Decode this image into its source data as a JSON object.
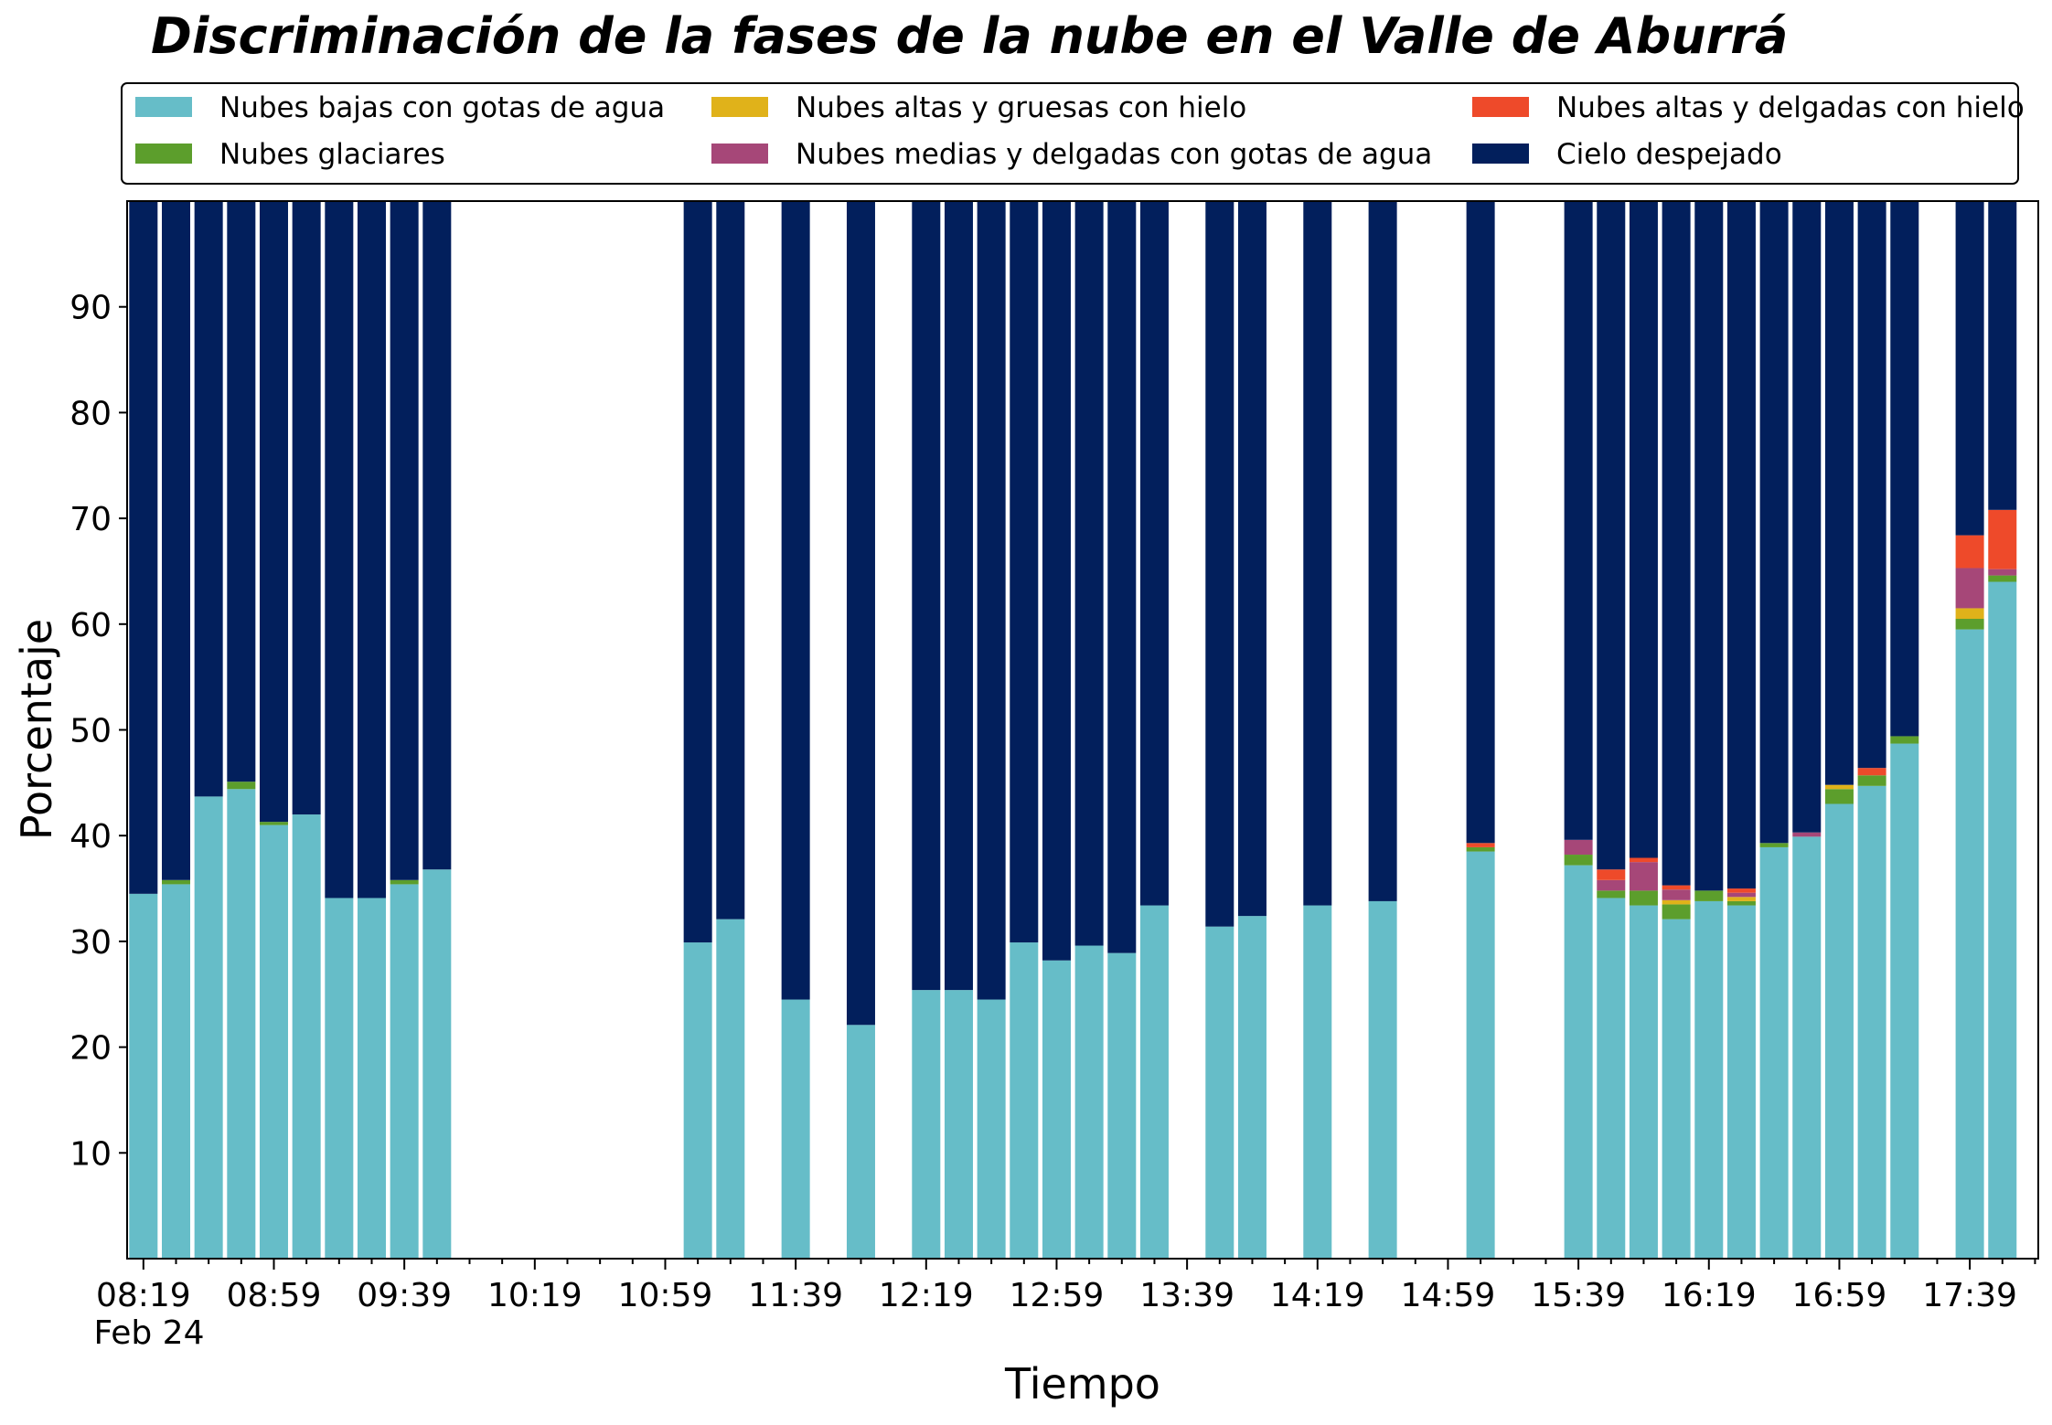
{
  "chart_data": {
    "type": "bar",
    "stacked": true,
    "title": "Discriminación de la fases de la nube en el Valle de Aburrá",
    "xlabel": "Tiempo",
    "ylabel": "Porcentaje",
    "ylim": [
      0,
      100
    ],
    "yticks": [
      10,
      20,
      30,
      40,
      50,
      60,
      70,
      80,
      90
    ],
    "xlim": [
      "08:14",
      "18:00"
    ],
    "xtick_labels": [
      "08:19",
      "08:59",
      "09:39",
      "10:19",
      "10:59",
      "11:39",
      "12:19",
      "12:59",
      "13:39",
      "14:19",
      "14:59",
      "15:39",
      "16:19",
      "16:59",
      "17:39"
    ],
    "x_date_label": "Feb 24",
    "grid": false,
    "legend_position": "top",
    "x": [
      "08:19",
      "08:29",
      "08:39",
      "08:49",
      "08:59",
      "09:09",
      "09:19",
      "09:29",
      "09:39",
      "09:49",
      "11:09",
      "11:19",
      "11:39",
      "11:59",
      "12:19",
      "12:29",
      "12:39",
      "12:49",
      "12:59",
      "13:09",
      "13:19",
      "13:29",
      "13:49",
      "13:59",
      "14:19",
      "14:39",
      "15:09",
      "15:39",
      "15:49",
      "15:59",
      "16:09",
      "16:19",
      "16:29",
      "16:39",
      "16:49",
      "16:59",
      "17:09",
      "17:19",
      "17:39",
      "17:49"
    ],
    "series": [
      {
        "name": "Nubes bajas con gotas de agua",
        "color": "#66bdc8",
        "values": [
          34.5,
          35.4,
          43.7,
          44.4,
          41.0,
          42.0,
          34.1,
          34.1,
          35.4,
          36.8,
          29.9,
          32.1,
          24.5,
          22.1,
          25.4,
          25.4,
          24.5,
          29.9,
          28.2,
          29.6,
          28.9,
          33.4,
          31.4,
          32.4,
          33.4,
          33.8,
          38.5,
          37.2,
          34.1,
          33.4,
          32.1,
          33.8,
          33.4,
          38.9,
          39.9,
          43.0,
          44.7,
          48.7,
          59.5,
          64.0
        ]
      },
      {
        "name": "Nubes glaciares",
        "color": "#5c9e2c",
        "values": [
          0,
          0.4,
          0,
          0.7,
          0.3,
          0,
          0,
          0,
          0.4,
          0,
          0,
          0,
          0,
          0,
          0,
          0,
          0,
          0,
          0,
          0,
          0,
          0,
          0,
          0,
          0,
          0,
          0.4,
          1.0,
          0.7,
          1.4,
          1.4,
          1.0,
          0.4,
          0.4,
          0,
          1.4,
          1.0,
          0.7,
          1.0,
          0.6
        ]
      },
      {
        "name": "Nubes altas y gruesas con hielo",
        "color": "#e0b21a",
        "values": [
          0,
          0,
          0,
          0,
          0,
          0,
          0,
          0,
          0,
          0,
          0,
          0,
          0,
          0,
          0,
          0,
          0,
          0,
          0,
          0,
          0,
          0,
          0,
          0,
          0,
          0,
          0,
          0,
          0,
          0,
          0.4,
          0,
          0.4,
          0,
          0,
          0.4,
          0,
          0,
          1.0,
          0
        ]
      },
      {
        "name": "Nubes medias y delgadas con gotas de agua",
        "color": "#a64778",
        "values": [
          0,
          0,
          0,
          0,
          0,
          0,
          0,
          0,
          0,
          0,
          0,
          0,
          0,
          0,
          0,
          0,
          0,
          0,
          0,
          0,
          0,
          0,
          0,
          0,
          0,
          0,
          0,
          1.4,
          1.0,
          2.7,
          1.0,
          0,
          0.4,
          0,
          0.4,
          0,
          0,
          0,
          3.8,
          0.6
        ]
      },
      {
        "name": "Nubes altas y delgadas con hielo",
        "color": "#ee4a2a",
        "values": [
          0,
          0,
          0,
          0,
          0,
          0,
          0,
          0,
          0,
          0,
          0,
          0,
          0,
          0,
          0,
          0,
          0,
          0,
          0,
          0,
          0,
          0,
          0,
          0,
          0,
          0,
          0.4,
          0,
          1.0,
          0.4,
          0.4,
          0,
          0.4,
          0,
          0,
          0,
          0.7,
          0,
          3.1,
          5.6
        ]
      },
      {
        "name": "Cielo despejado",
        "color": "#021f5c",
        "values": [
          65.5,
          64.2,
          56.3,
          54.9,
          58.7,
          58.0,
          65.9,
          65.9,
          64.2,
          63.2,
          70.1,
          67.9,
          75.5,
          77.9,
          74.6,
          74.6,
          75.5,
          70.1,
          71.8,
          70.4,
          71.1,
          66.6,
          68.6,
          67.6,
          66.6,
          66.2,
          60.7,
          60.4,
          63.2,
          62.1,
          64.7,
          65.2,
          65.4,
          60.7,
          59.7,
          55.2,
          53.6,
          50.6,
          31.6,
          29.2
        ]
      }
    ]
  }
}
